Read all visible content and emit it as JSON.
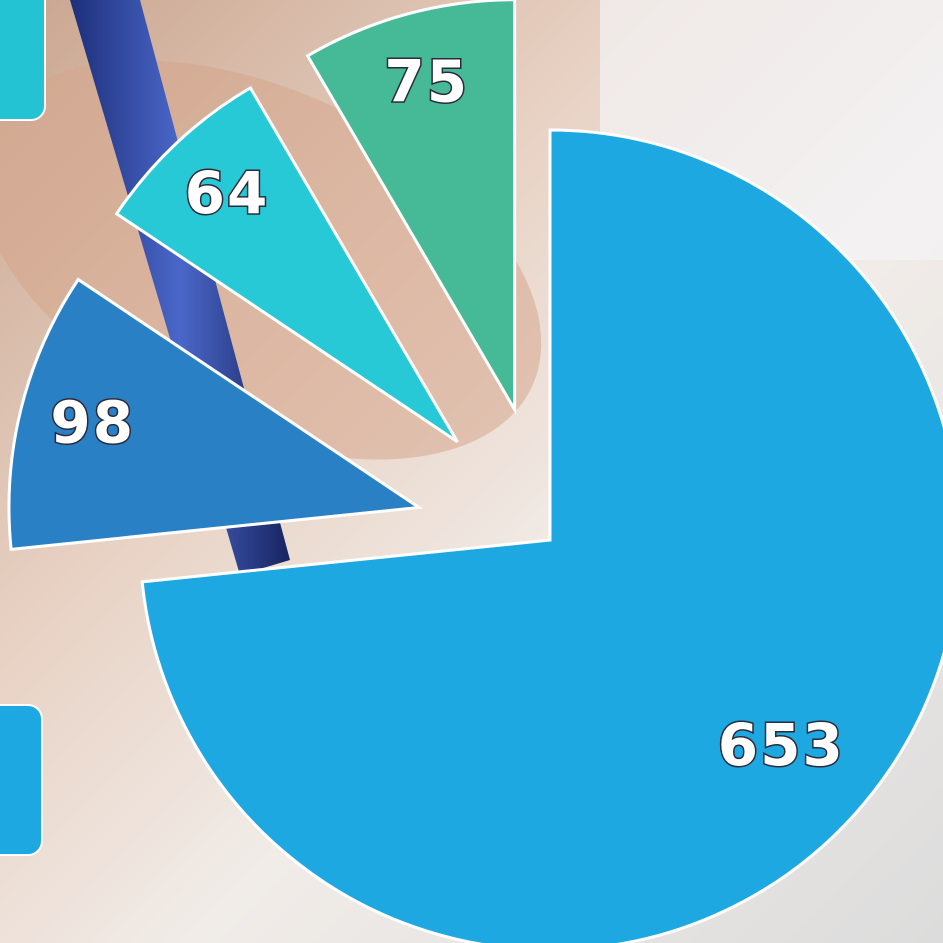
{
  "chart_data": {
    "type": "pie",
    "values": [
      653,
      98,
      64,
      75
    ],
    "colors": [
      "#1ea8e1",
      "#2a80c5",
      "#26c9d5",
      "#46ba97"
    ]
  }
}
